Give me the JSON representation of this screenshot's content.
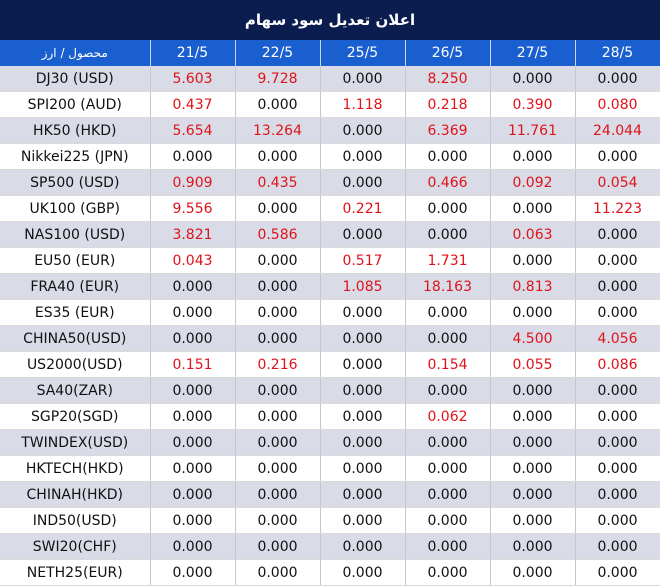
{
  "title": "اعلان تعديل سود سهام",
  "header": {
    "symbol_label": "محصول / ارز",
    "dates": [
      "21/5",
      "22/5",
      "25/5",
      "26/5",
      "27/5",
      "28/5"
    ]
  },
  "colors": {
    "title_bg": "#0b1d4f",
    "header_bg": "#1a5fcf",
    "positive": "#e0121a",
    "alt_row": "#d9dce7"
  },
  "rows": [
    {
      "symbol": "DJ30 (USD)",
      "values": [
        "5.603",
        "9.728",
        "0.000",
        "8.250",
        "0.000",
        "0.000"
      ]
    },
    {
      "symbol": "SPI200 (AUD)",
      "values": [
        "0.437",
        "0.000",
        "1.118",
        "0.218",
        "0.390",
        "0.080"
      ]
    },
    {
      "symbol": "HK50 (HKD)",
      "values": [
        "5.654",
        "13.264",
        "0.000",
        "6.369",
        "11.761",
        "24.044"
      ]
    },
    {
      "symbol": "Nikkei225 (JPN)",
      "values": [
        "0.000",
        "0.000",
        "0.000",
        "0.000",
        "0.000",
        "0.000"
      ]
    },
    {
      "symbol": "SP500 (USD)",
      "values": [
        "0.909",
        "0.435",
        "0.000",
        "0.466",
        "0.092",
        "0.054"
      ]
    },
    {
      "symbol": "UK100 (GBP)",
      "values": [
        "9.556",
        "0.000",
        "0.221",
        "0.000",
        "0.000",
        "11.223"
      ]
    },
    {
      "symbol": "NAS100 (USD)",
      "values": [
        "3.821",
        "0.586",
        "0.000",
        "0.000",
        "0.063",
        "0.000"
      ]
    },
    {
      "symbol": "EU50 (EUR)",
      "values": [
        "0.043",
        "0.000",
        "0.517",
        "1.731",
        "0.000",
        "0.000"
      ]
    },
    {
      "symbol": "FRA40 (EUR)",
      "values": [
        "0.000",
        "0.000",
        "1.085",
        "18.163",
        "0.813",
        "0.000"
      ]
    },
    {
      "symbol": "ES35 (EUR)",
      "values": [
        "0.000",
        "0.000",
        "0.000",
        "0.000",
        "0.000",
        "0.000"
      ]
    },
    {
      "symbol": "CHINA50(USD)",
      "values": [
        "0.000",
        "0.000",
        "0.000",
        "0.000",
        "4.500",
        "4.056"
      ]
    },
    {
      "symbol": "US2000(USD)",
      "values": [
        "0.151",
        "0.216",
        "0.000",
        "0.154",
        "0.055",
        "0.086"
      ]
    },
    {
      "symbol": "SA40(ZAR)",
      "values": [
        "0.000",
        "0.000",
        "0.000",
        "0.000",
        "0.000",
        "0.000"
      ]
    },
    {
      "symbol": "SGP20(SGD)",
      "values": [
        "0.000",
        "0.000",
        "0.000",
        "0.062",
        "0.000",
        "0.000"
      ]
    },
    {
      "symbol": "TWINDEX(USD)",
      "values": [
        "0.000",
        "0.000",
        "0.000",
        "0.000",
        "0.000",
        "0.000"
      ]
    },
    {
      "symbol": "HKTECH(HKD)",
      "values": [
        "0.000",
        "0.000",
        "0.000",
        "0.000",
        "0.000",
        "0.000"
      ]
    },
    {
      "symbol": "CHINAH(HKD)",
      "values": [
        "0.000",
        "0.000",
        "0.000",
        "0.000",
        "0.000",
        "0.000"
      ]
    },
    {
      "symbol": "IND50(USD)",
      "values": [
        "0.000",
        "0.000",
        "0.000",
        "0.000",
        "0.000",
        "0.000"
      ]
    },
    {
      "symbol": "SWI20(CHF)",
      "values": [
        "0.000",
        "0.000",
        "0.000",
        "0.000",
        "0.000",
        "0.000"
      ]
    },
    {
      "symbol": "NETH25(EUR)",
      "values": [
        "0.000",
        "0.000",
        "0.000",
        "0.000",
        "0.000",
        "0.000"
      ]
    }
  ]
}
